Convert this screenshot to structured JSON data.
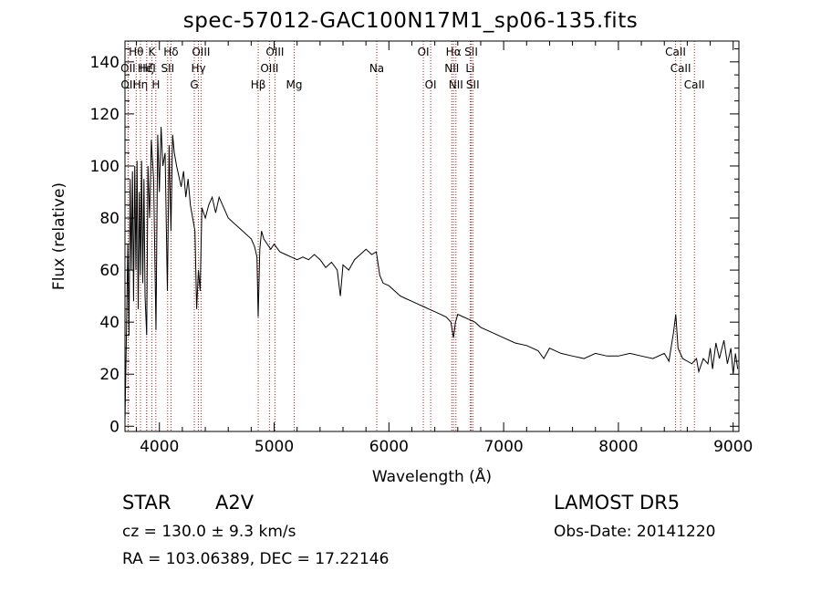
{
  "chart_data": {
    "type": "line",
    "title": "spec-57012-GAC100N17M1_sp06-135.fits",
    "xlabel": "Wavelength (Å)",
    "ylabel": "Flux (relative)",
    "xlim": [
      3700,
      9050
    ],
    "ylim": [
      -2,
      148
    ],
    "xticks": [
      4000,
      5000,
      6000,
      7000,
      8000,
      9000
    ],
    "xtick_labels": [
      "4000",
      "5000",
      "6000",
      "7000",
      "8000",
      "9000"
    ],
    "yticks": [
      0,
      20,
      40,
      60,
      80,
      100,
      120,
      140
    ],
    "ytick_labels": [
      "0",
      "20",
      "40",
      "60",
      "80",
      "100",
      "120",
      "140"
    ],
    "line_color": "#000000",
    "marker_color": "#b22222",
    "series": [
      {
        "x": [
          3700,
          3715,
          3725,
          3735,
          3745,
          3755,
          3765,
          3775,
          3785,
          3795,
          3805,
          3815,
          3825,
          3835,
          3845,
          3855,
          3865,
          3875,
          3889,
          3900,
          3915,
          3930,
          3950,
          3970,
          3985,
          4000,
          4015,
          4030,
          4050,
          4070,
          4085,
          4101,
          4115,
          4130,
          4150,
          4170,
          4190,
          4210,
          4230,
          4250,
          4270,
          4290,
          4310,
          4325,
          4340,
          4355,
          4370,
          4400,
          4430,
          4460,
          4490,
          4520,
          4560,
          4600,
          4650,
          4700,
          4750,
          4800,
          4830,
          4850,
          4861,
          4875,
          4890,
          4910,
          4940,
          4970,
          5000,
          5050,
          5100,
          5150,
          5200,
          5250,
          5300,
          5350,
          5400,
          5450,
          5500,
          5550,
          5577,
          5600,
          5650,
          5700,
          5750,
          5800,
          5850,
          5890,
          5920,
          5950,
          6000,
          6050,
          6100,
          6150,
          6200,
          6250,
          6300,
          6350,
          6400,
          6450,
          6500,
          6540,
          6563,
          6580,
          6600,
          6650,
          6700,
          6750,
          6800,
          6900,
          7000,
          7100,
          7200,
          7300,
          7350,
          7400,
          7500,
          7600,
          7700,
          7800,
          7900,
          8000,
          8100,
          8200,
          8300,
          8400,
          8440,
          8480,
          8500,
          8520,
          8540,
          8560,
          8600,
          8640,
          8680,
          8700,
          8740,
          8780,
          8800,
          8820,
          8850,
          8880,
          8920,
          8950,
          8980,
          9000,
          9020,
          9040
        ],
        "y": [
          2,
          42,
          70,
          35,
          95,
          60,
          98,
          48,
          100,
          60,
          102,
          45,
          90,
          58,
          102,
          55,
          95,
          50,
          35,
          100,
          80,
          110,
          95,
          37,
          112,
          90,
          115,
          100,
          105,
          52,
          108,
          75,
          112,
          105,
          100,
          96,
          92,
          98,
          88,
          95,
          85,
          80,
          75,
          45,
          60,
          52,
          84,
          80,
          85,
          88,
          82,
          88,
          84,
          80,
          78,
          76,
          74,
          72,
          69,
          65,
          42,
          68,
          75,
          72,
          70,
          68,
          70,
          67,
          66,
          65,
          64,
          65,
          64,
          66,
          64,
          61,
          63,
          60,
          50,
          62,
          60,
          64,
          66,
          68,
          66,
          67,
          58,
          55,
          54,
          52,
          50,
          49,
          48,
          47,
          46,
          45,
          44,
          43,
          42,
          40,
          34,
          40,
          43,
          42,
          41,
          40,
          38,
          36,
          34,
          32,
          31,
          29,
          26,
          30,
          28,
          27,
          26,
          28,
          27,
          27,
          28,
          27,
          26,
          28,
          25,
          36,
          43,
          30,
          28,
          26,
          25,
          24,
          26,
          21,
          26,
          24,
          30,
          22,
          32,
          26,
          33,
          24,
          30,
          20,
          28,
          22
        ]
      }
    ],
    "lines": [
      {
        "label": "Hθ",
        "wavelength": 3798,
        "row": 1
      },
      {
        "label": "OII",
        "wavelength": 3727,
        "row": 2
      },
      {
        "label": "OII",
        "wavelength": 3729,
        "row": 3
      },
      {
        "label": "Hη",
        "wavelength": 3835,
        "row": 3
      },
      {
        "label": "Hζ",
        "wavelength": 3889,
        "row": 2
      },
      {
        "label": "K",
        "wavelength": 3934,
        "row": 1
      },
      {
        "label": "H",
        "wavelength": 3969,
        "row": 3
      },
      {
        "label": "HeI",
        "wavelength": 3889,
        "row": 2
      },
      {
        "label": "Hδ",
        "wavelength": 4101,
        "row": 1
      },
      {
        "label": "SII",
        "wavelength": 4072,
        "row": 2
      },
      {
        "label": "OIII",
        "wavelength": 4363,
        "row": 1
      },
      {
        "label": "Hγ",
        "wavelength": 4340,
        "row": 2
      },
      {
        "label": "G",
        "wavelength": 4304,
        "row": 3
      },
      {
        "label": "Hβ",
        "wavelength": 4861,
        "row": 3
      },
      {
        "label": "OIII",
        "wavelength": 5007,
        "row": 1
      },
      {
        "label": "OIII",
        "wavelength": 4959,
        "row": 2
      },
      {
        "label": "Mg",
        "wavelength": 5175,
        "row": 3
      },
      {
        "label": "Na",
        "wavelength": 5894,
        "row": 2
      },
      {
        "label": "OI",
        "wavelength": 6300,
        "row": 1
      },
      {
        "label": "OI",
        "wavelength": 6364,
        "row": 3
      },
      {
        "label": "Hα",
        "wavelength": 6563,
        "row": 1
      },
      {
        "label": "NII",
        "wavelength": 6548,
        "row": 2
      },
      {
        "label": "NII",
        "wavelength": 6584,
        "row": 3
      },
      {
        "label": "SII",
        "wavelength": 6717,
        "row": 1
      },
      {
        "label": "Li",
        "wavelength": 6708,
        "row": 2
      },
      {
        "label": "SII",
        "wavelength": 6731,
        "row": 3
      },
      {
        "label": "CaII",
        "wavelength": 8498,
        "row": 1
      },
      {
        "label": "CaII",
        "wavelength": 8542,
        "row": 2
      },
      {
        "label": "CaII",
        "wavelength": 8662,
        "row": 3
      }
    ]
  },
  "info": {
    "obj_class": "STAR",
    "obj_subclass": "A2V",
    "survey": "LAMOST DR5",
    "cz": "cz = 130.0 ± 9.3 km/s",
    "obs_date": "Obs-Date: 20141220",
    "radec": "RA = 103.06389, DEC =  17.22146"
  }
}
